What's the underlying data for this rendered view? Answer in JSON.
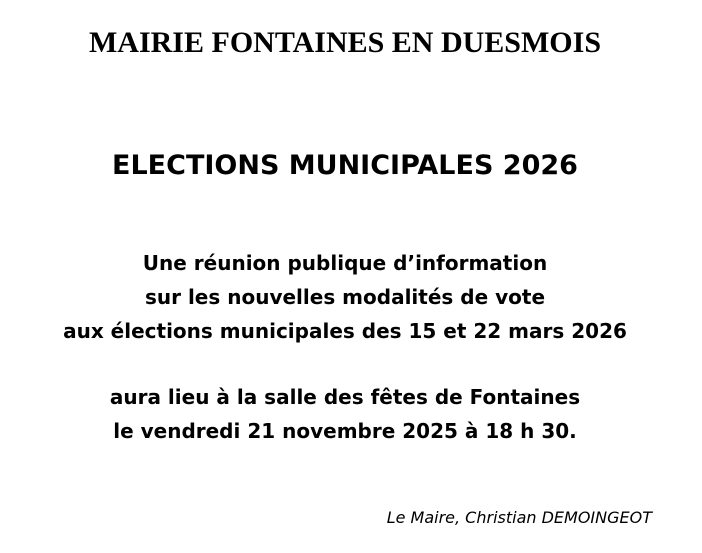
{
  "slide": {
    "colors": {
      "background": "#ffffff",
      "text": "#000000"
    },
    "title": "MAIRIE FONTAINES EN DUESMOIS",
    "heading": "ELECTIONS MUNICIPALES 2026",
    "announcement": {
      "line1": "Une réunion publique d’information",
      "line2": "sur les nouvelles modalités de vote",
      "line3": "aux élections municipales des 15 et 22 mars 2026"
    },
    "schedule": {
      "line1": "aura lieu à la salle des fêtes de Fontaines",
      "line2": "le vendredi 21 novembre 2025 à 18 h 30."
    },
    "signature": "Le Maire, Christian DEMOINGEOT"
  }
}
